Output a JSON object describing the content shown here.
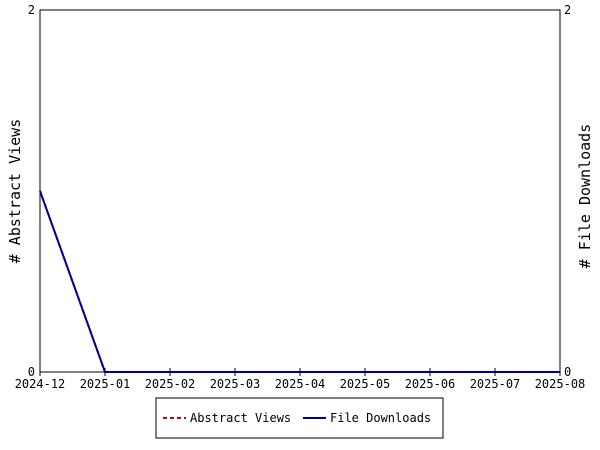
{
  "chart_data": {
    "type": "line",
    "categories": [
      "2024-12",
      "2025-01",
      "2025-02",
      "2025-03",
      "2025-04",
      "2025-05",
      "2025-06",
      "2025-07",
      "2025-08"
    ],
    "ylabel_left": "# Abstract Views",
    "ylabel_right": "# File Downloads",
    "ylim_left": [
      0,
      2
    ],
    "ylim_right": [
      0,
      2
    ],
    "yticks_left": [
      "0",
      "2"
    ],
    "yticks_right": [
      "0",
      "2"
    ],
    "series": [
      {
        "name": "Abstract Views",
        "axis": "left",
        "color": "#cc0000",
        "dash": true,
        "values": [
          1,
          0,
          0,
          0,
          0,
          0,
          0,
          0,
          0
        ]
      },
      {
        "name": "File Downloads",
        "axis": "right",
        "color": "#000099",
        "dash": false,
        "values": [
          1,
          0,
          0,
          0,
          0,
          0,
          0,
          0,
          0
        ]
      }
    ],
    "grid": false,
    "legend_position": "bottom-center"
  }
}
